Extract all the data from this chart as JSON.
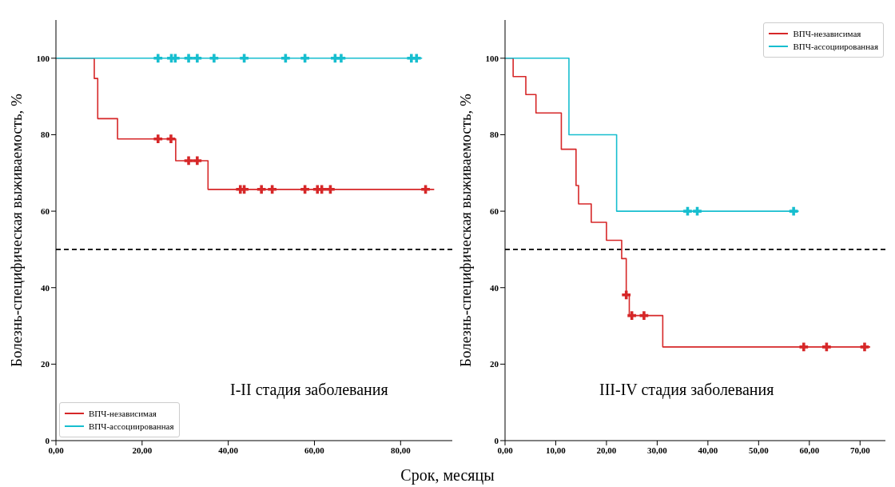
{
  "chart_data": [
    {
      "type": "step",
      "ylabel": "Болезнь-специфическая выживаемость, %",
      "xlabel": "Срок, месяцы",
      "annotations": [
        "I-II стадия заболевания"
      ],
      "xlim": [
        0,
        92
      ],
      "ylim": [
        0,
        110
      ],
      "xticks": [
        {
          "value": 0,
          "label": "0,00"
        },
        {
          "value": 20,
          "label": "20,00"
        },
        {
          "value": 40,
          "label": "40,00"
        },
        {
          "value": 60,
          "label": "60,00"
        },
        {
          "value": 80,
          "label": "80,00"
        }
      ],
      "yticks": [
        0,
        20,
        40,
        60,
        80,
        100
      ],
      "legend": "bottom left",
      "ref_lines": [
        {
          "axis": "y",
          "value": 50,
          "color": "#000000",
          "line_style": "dashed"
        }
      ],
      "series": [
        {
          "name": "ВПЧ-независимая",
          "color": "#d62728",
          "x": [
            0,
            8.9,
            9.7,
            14.3,
            27.8,
            35.3,
            87.8
          ],
          "values": [
            100,
            94.7,
            84.2,
            78.9,
            73.2,
            65.7,
            65.7
          ]
        },
        {
          "name": "ВПЧ-ассоциированная",
          "color": "#17becf",
          "x": [
            0,
            85.0
          ],
          "values": [
            100,
            100
          ]
        },
        {
          "type": "scatter",
          "marker": "cross",
          "color": "#d62728",
          "x": [
            23.7,
            26.7,
            30.8,
            32.8,
            42.8,
            43.7,
            47.7,
            50.2,
            57.8,
            60.7,
            61.7,
            63.7,
            85.8
          ],
          "values": [
            78.9,
            78.9,
            73.2,
            73.2,
            65.7,
            65.7,
            65.7,
            65.7,
            65.7,
            65.7,
            65.7,
            65.7,
            65.7
          ]
        },
        {
          "type": "scatter",
          "marker": "cross",
          "color": "#17becf",
          "x": [
            23.7,
            26.8,
            27.7,
            30.8,
            32.8,
            36.7,
            43.7,
            53.3,
            57.8,
            64.8,
            66.2,
            82.5,
            83.7
          ],
          "values": [
            100,
            100,
            100,
            100,
            100,
            100,
            100,
            100,
            100,
            100,
            100,
            100,
            100
          ]
        }
      ]
    },
    {
      "type": "step",
      "ylabel": "Болезнь-специфическая выживаемость, %",
      "annotations": [
        "III-IV стадия заболевания"
      ],
      "xlim": [
        0,
        75
      ],
      "ylim": [
        0,
        110
      ],
      "xticks": [
        {
          "value": 0,
          "label": "0,00"
        },
        {
          "value": 10,
          "label": "10,00"
        },
        {
          "value": 20,
          "label": "20,00"
        },
        {
          "value": 30,
          "label": "30,00"
        },
        {
          "value": 40,
          "label": "40,00"
        },
        {
          "value": 50,
          "label": "50,00"
        },
        {
          "value": 60,
          "label": "60,00"
        },
        {
          "value": 70,
          "label": "70,00"
        }
      ],
      "yticks": [
        0,
        20,
        40,
        60,
        80,
        100
      ],
      "legend": "top right",
      "ref_lines": [
        {
          "axis": "y",
          "value": 50,
          "color": "#000000",
          "line_style": "dashed"
        }
      ],
      "series": [
        {
          "name": "ВПЧ-независимая",
          "color": "#d62728",
          "x": [
            0,
            1.6,
            4.1,
            6.1,
            11.1,
            14.0,
            14.5,
            17.0,
            20.0,
            23.0,
            23.9,
            24.5,
            31.1,
            72.0
          ],
          "values": [
            100,
            95.2,
            90.5,
            85.7,
            76.2,
            66.7,
            61.9,
            57.1,
            52.4,
            47.6,
            38.1,
            32.7,
            24.5,
            24.5
          ]
        },
        {
          "name": "ВПЧ-ассоциированная",
          "color": "#17becf",
          "x": [
            0,
            12.6,
            22.0,
            57.9
          ],
          "values": [
            100,
            80,
            60,
            60
          ]
        },
        {
          "type": "scatter",
          "marker": "cross",
          "color": "#d62728",
          "x": [
            23.9,
            25.0,
            27.4,
            58.9,
            63.4,
            70.9
          ],
          "values": [
            38.1,
            32.7,
            32.7,
            24.5,
            24.5,
            24.5
          ]
        },
        {
          "type": "scatter",
          "marker": "cross",
          "color": "#17becf",
          "x": [
            36.0,
            37.9,
            56.9
          ],
          "values": [
            60,
            60,
            60
          ]
        }
      ]
    }
  ]
}
